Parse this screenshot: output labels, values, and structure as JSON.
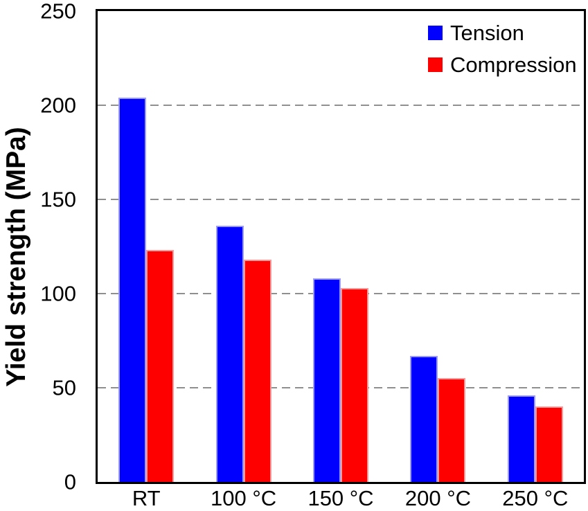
{
  "chart_data": {
    "type": "bar",
    "title": "",
    "xlabel": "",
    "ylabel": "Yield strength (MPa)",
    "ylim": [
      0,
      250
    ],
    "yticks": [
      0,
      50,
      100,
      150,
      200,
      250
    ],
    "gridlines": [
      50,
      100,
      150,
      200
    ],
    "grid": "dashed horizontal",
    "grid_color": "#8f8f8f",
    "frame_color": "#000000",
    "plot_background": "#ffffff",
    "legend_position": "top-right",
    "categories": [
      "RT",
      "100 °C",
      "150 °C",
      "200 °C",
      "250 °C"
    ],
    "series": [
      {
        "name": "Tension",
        "color": "#0000ff",
        "border_color": "#9a9aff",
        "values": [
          204,
          136,
          108,
          67,
          46
        ]
      },
      {
        "name": "Compression",
        "color": "#ff0000",
        "border_color": "#ff9a9a",
        "values": [
          123,
          118,
          103,
          55,
          40
        ]
      }
    ]
  }
}
